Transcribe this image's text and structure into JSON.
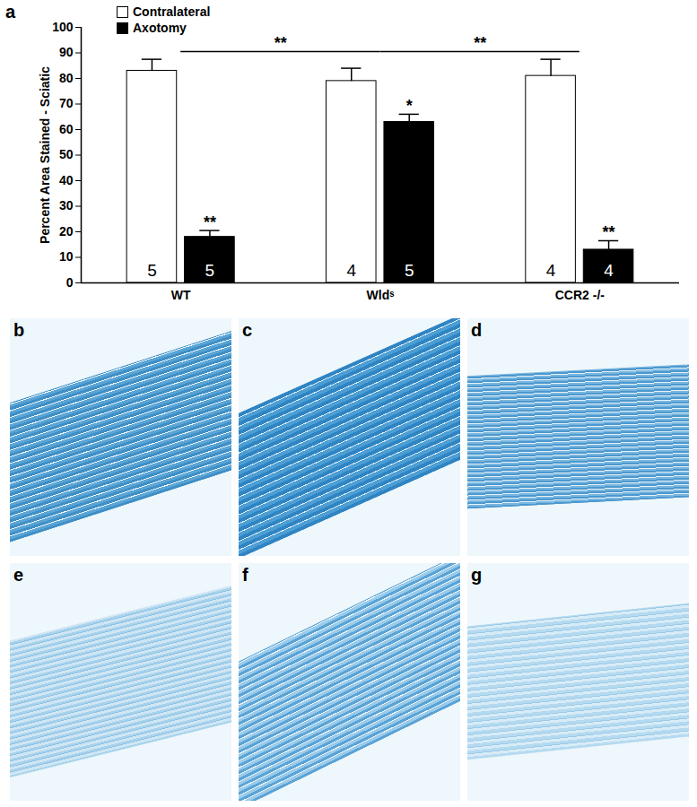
{
  "chart_data": {
    "type": "bar",
    "panel_label": "a",
    "y_label": "Percent Area Stained - Sciatic",
    "categories": [
      "WT",
      "Wldˢ",
      "CCR2 -/-"
    ],
    "series": [
      {
        "name": "Contralateral",
        "color": "#ffffff",
        "values": [
          83,
          79,
          81
        ],
        "errors": [
          4.5,
          5,
          6.5
        ],
        "n": [
          5,
          4,
          4
        ]
      },
      {
        "name": "Axotomy",
        "color": "#000000",
        "values": [
          18,
          63,
          13
        ],
        "errors": [
          2.5,
          3,
          3.5
        ],
        "n": [
          5,
          5,
          4
        ]
      }
    ],
    "ylim": [
      0,
      100
    ],
    "yticks": [
      0,
      10,
      20,
      30,
      40,
      50,
      60,
      70,
      80,
      90,
      100
    ],
    "grid": false,
    "legend": "top-left",
    "annotations": [
      {
        "text": "**",
        "category": "WT",
        "series": "Axotomy"
      },
      {
        "text": "*",
        "category": "Wldˢ",
        "series": "Axotomy"
      },
      {
        "text": "**",
        "category": "CCR2 -/-",
        "series": "Axotomy"
      },
      {
        "text": "**",
        "from": "WT",
        "to": "Wldˢ"
      },
      {
        "text": "**",
        "from": "Wldˢ",
        "to": "CCR2 -/-"
      }
    ]
  },
  "panels": [
    {
      "label": "b"
    },
    {
      "label": "c"
    },
    {
      "label": "d"
    },
    {
      "label": "e"
    },
    {
      "label": "f"
    },
    {
      "label": "g"
    }
  ]
}
